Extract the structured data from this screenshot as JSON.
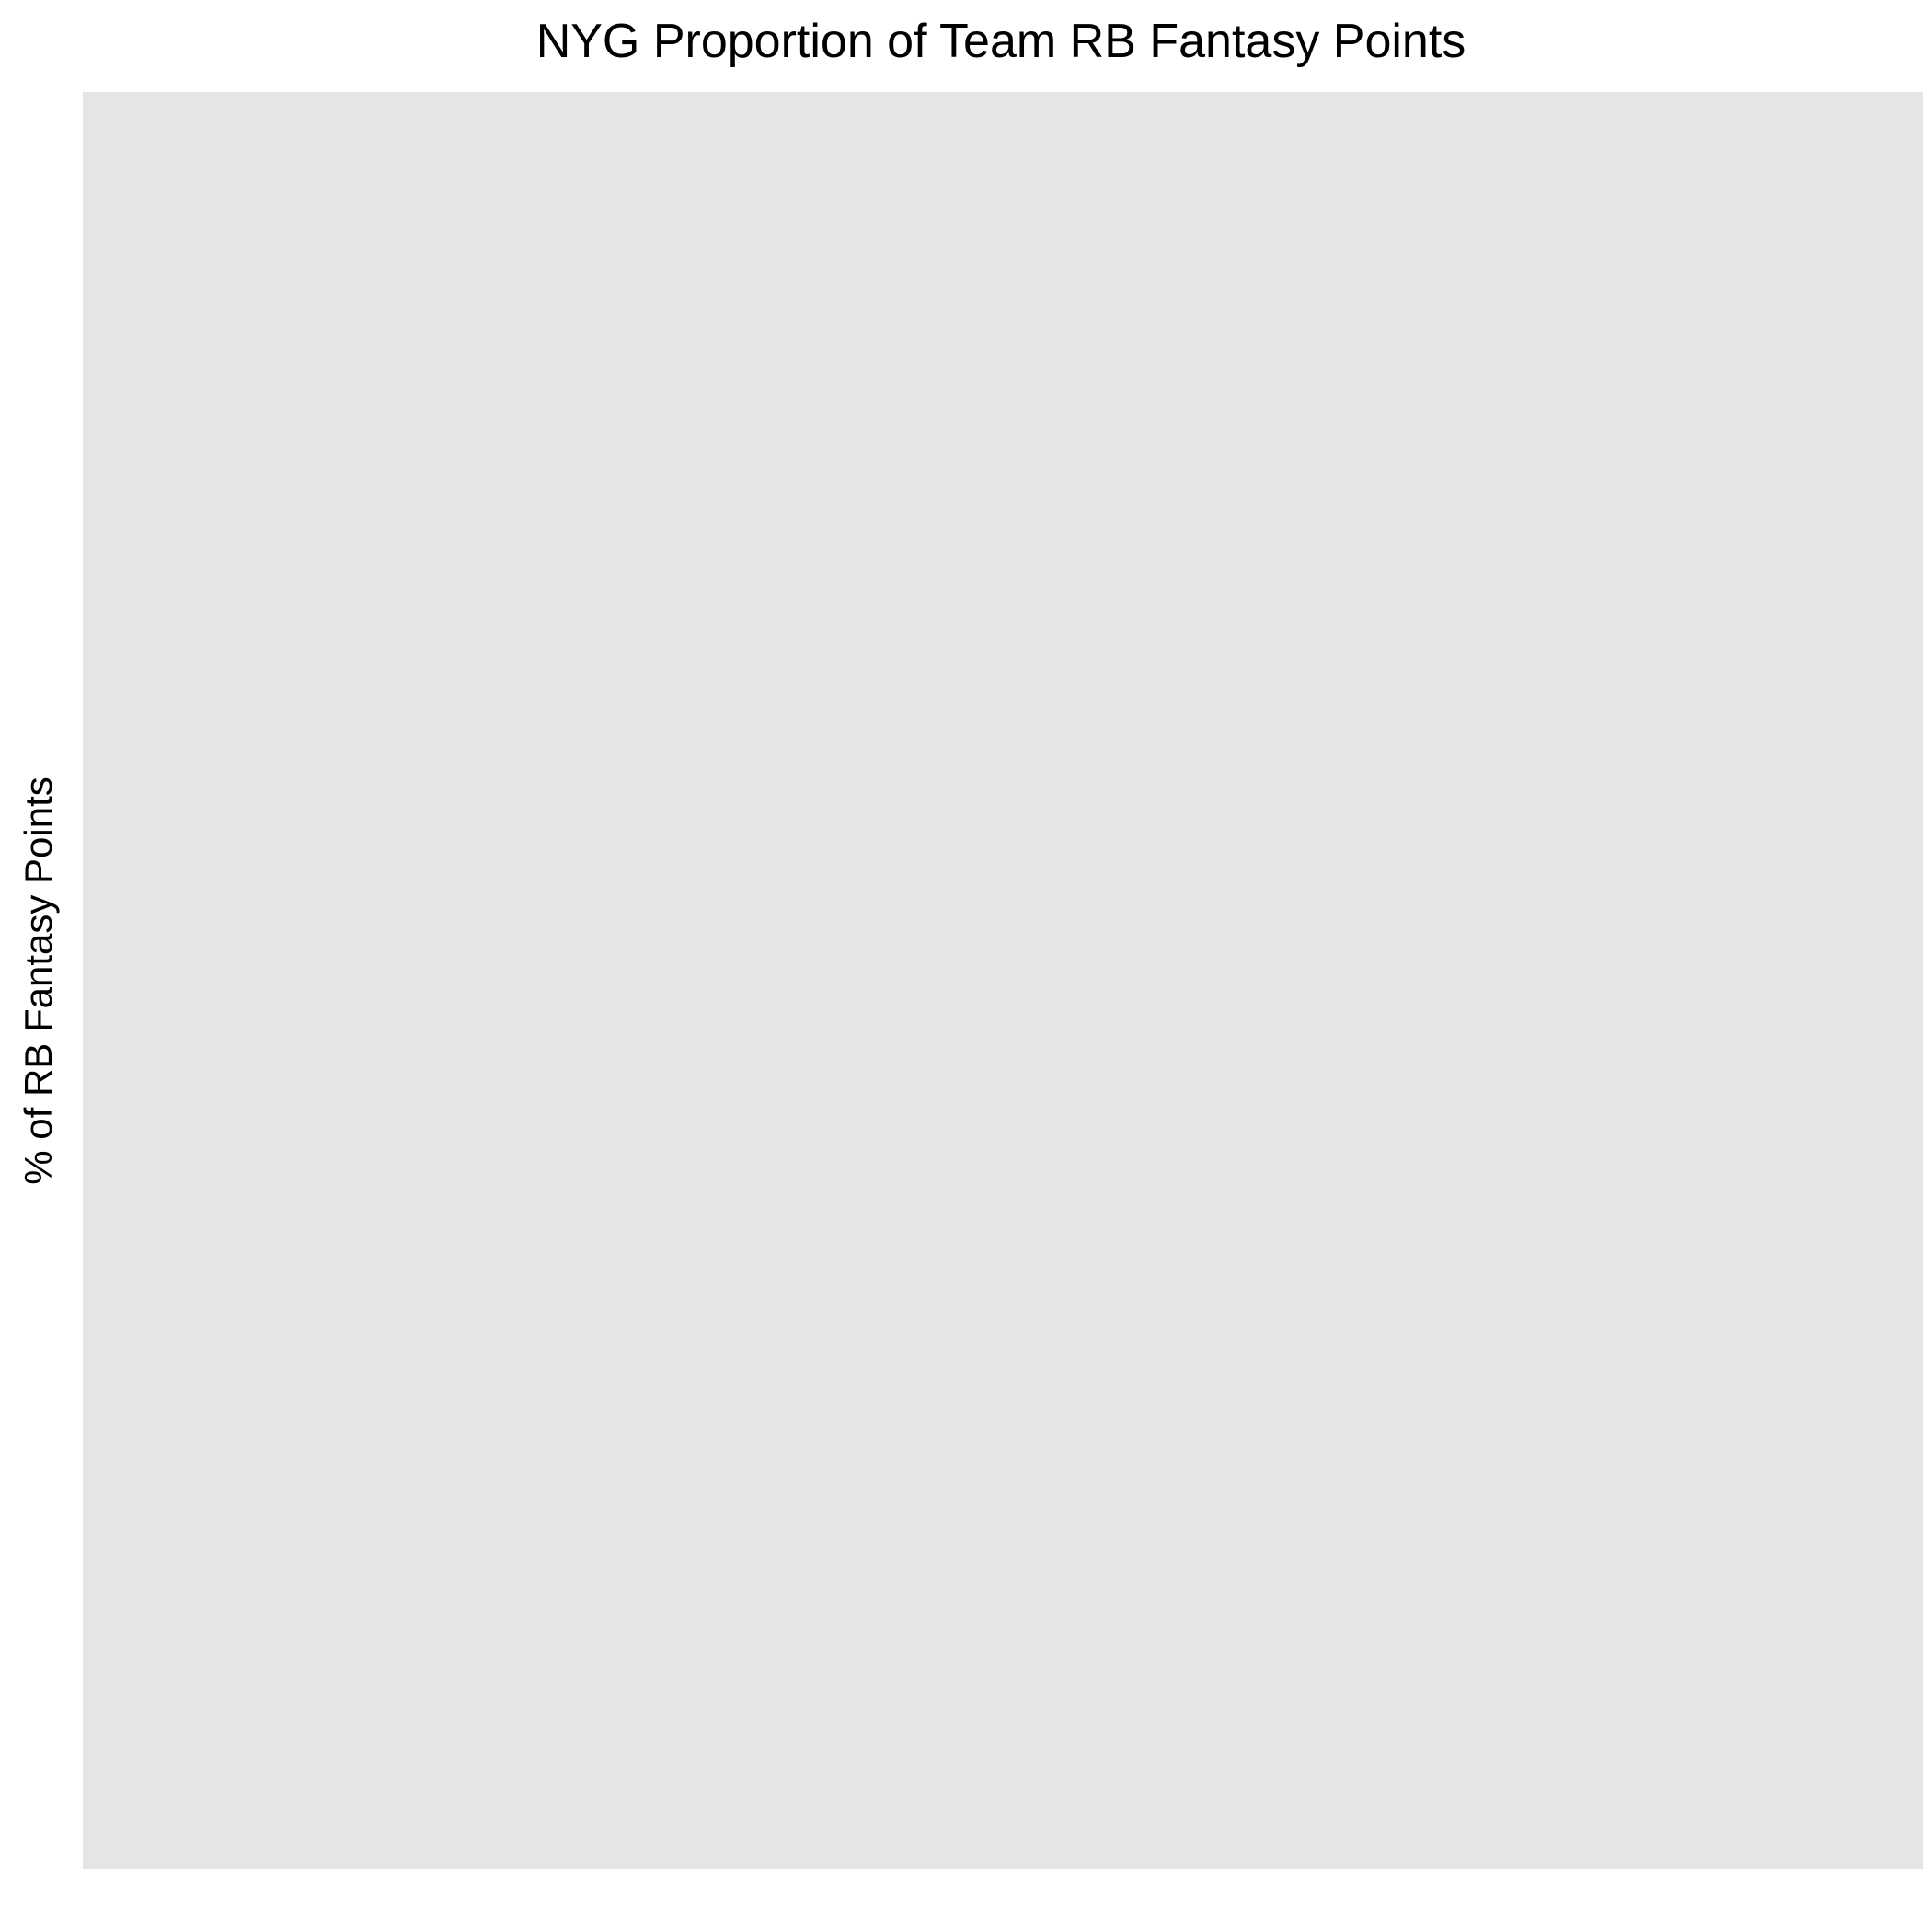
{
  "chart_data": {
    "type": "bar",
    "title": "NYG Proportion of Team RB Fantasy Points",
    "xlabel": "",
    "ylabel": "% of RB Fantasy Points",
    "categories": [],
    "values": [],
    "grid": false,
    "legend": "none",
    "panel_background": "#e5e5e5",
    "page_background": "#ffffff"
  }
}
